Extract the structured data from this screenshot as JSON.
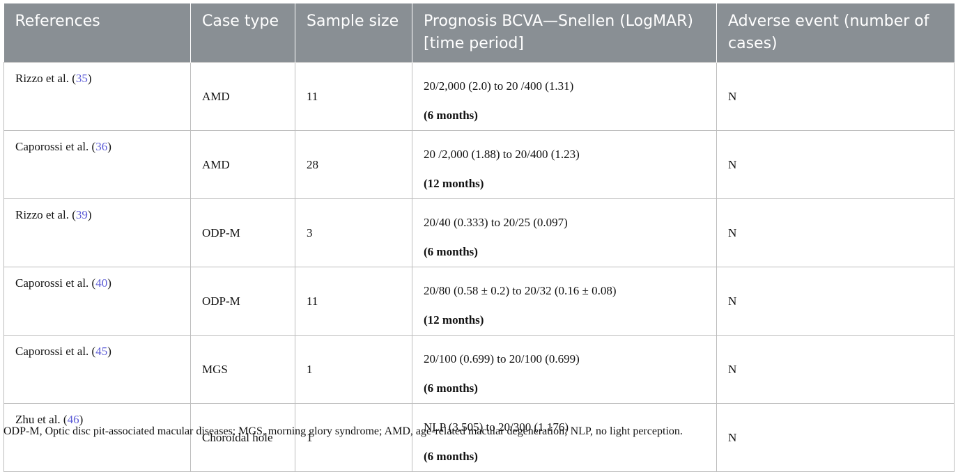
{
  "table": {
    "headers": [
      "References",
      "Case type",
      "Sample size",
      "Prognosis BCVA—Snellen (LogMAR) [time period]",
      "Adverse event (number of cases)"
    ],
    "rows": [
      {
        "author": "Rizzo et al. (",
        "cite": "35",
        "close": ")",
        "case_type": "AMD",
        "sample_size": "11",
        "bcva": "20/2,000 (2.0) to 20 /400 (1.31)",
        "period": "(6 months)",
        "adverse": "N"
      },
      {
        "author": "Caporossi et al. (",
        "cite": "36",
        "close": ")",
        "case_type": "AMD",
        "sample_size": "28",
        "bcva": "20 /2,000 (1.88) to 20/400 (1.23)",
        "period": "(12 months)",
        "adverse": "N"
      },
      {
        "author": "Rizzo et al. (",
        "cite": "39",
        "close": ")",
        "case_type": "ODP-M",
        "sample_size": "3",
        "bcva": "20/40 (0.333) to 20/25 (0.097)",
        "period": "(6 months)",
        "adverse": "N"
      },
      {
        "author": "Caporossi et al. (",
        "cite": "40",
        "close": ")",
        "case_type": "ODP-M",
        "sample_size": "11",
        "bcva": "20/80 (0.58 ± 0.2) to 20/32 (0.16 ± 0.08)",
        "period": "(12 months)",
        "adverse": "N"
      },
      {
        "author": "Caporossi et al. (",
        "cite": "45",
        "close": ")",
        "case_type": "MGS",
        "sample_size": "1",
        "bcva": "20/100 (0.699) to 20/100 (0.699)",
        "period": "(6 months)",
        "adverse": "N"
      },
      {
        "author": "Zhu et al. (",
        "cite": "46",
        "close": ")",
        "case_type": "Choroidal hole",
        "sample_size": "1",
        "bcva": "NLP (3.505) to 20/300 (1.176)",
        "period": "(6 months)",
        "adverse": "N"
      }
    ]
  },
  "footnote": "ODP-M, Optic disc pit-associated macular diseases; MGS, morning glory syndrome; AMD, age-related macular degeneration; NLP, no light perception."
}
